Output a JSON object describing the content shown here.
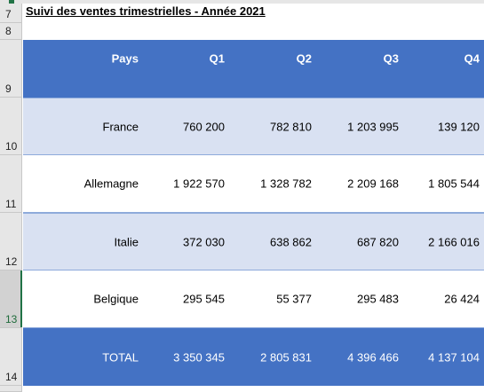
{
  "sheet": {
    "title": "Suivi des ventes trimestrielles - Année 2021",
    "row_numbers": [
      "7",
      "8",
      "9",
      "10",
      "11",
      "12",
      "13",
      "14"
    ],
    "header": {
      "country": "Pays",
      "q1": "Q1",
      "q2": "Q2",
      "q3": "Q3",
      "q4": "Q4"
    },
    "rows": [
      {
        "country": "France",
        "q1": "760 200",
        "q2": "782 810",
        "q3": "1 203 995",
        "q4": "139 120"
      },
      {
        "country": "Allemagne",
        "q1": "1 922 570",
        "q2": "1 328 782",
        "q3": "2 209 168",
        "q4": "1 805 544"
      },
      {
        "country": "Italie",
        "q1": "372 030",
        "q2": "638 862",
        "q3": "687 820",
        "q4": "2 166 016"
      },
      {
        "country": "Belgique",
        "q1": "295 545",
        "q2": "55 377",
        "q3": "295 483",
        "q4": "26 424"
      }
    ],
    "total": {
      "label": "TOTAL",
      "q1": "3 350 345",
      "q2": "2 805 831",
      "q3": "4 396 466",
      "q4": "4 137 104"
    },
    "selected_row": "13",
    "colors": {
      "header_blue": "#4472c4",
      "band_light": "#d9e1f2",
      "excel_green": "#217346"
    }
  }
}
